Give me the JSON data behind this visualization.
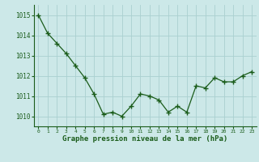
{
  "hours": [
    0,
    1,
    2,
    3,
    4,
    5,
    6,
    7,
    8,
    9,
    10,
    11,
    12,
    13,
    14,
    15,
    16,
    17,
    18,
    19,
    20,
    21,
    22,
    23
  ],
  "pressure": [
    1015.0,
    1014.1,
    1013.6,
    1013.1,
    1012.5,
    1011.9,
    1011.1,
    1010.1,
    1010.2,
    1010.0,
    1010.5,
    1011.1,
    1011.0,
    1010.8,
    1010.2,
    1010.5,
    1010.2,
    1011.5,
    1011.4,
    1011.9,
    1011.7,
    1011.7,
    1012.0,
    1012.2
  ],
  "line_color": "#1a5c1a",
  "marker_color": "#1a5c1a",
  "bg_color": "#cce8e8",
  "grid_color": "#aad0d0",
  "xlabel": "Graphe pression niveau de la mer (hPa)",
  "xlabel_color": "#1a5c1a",
  "tick_color": "#1a5c1a",
  "ylim": [
    1009.5,
    1015.5
  ],
  "yticks": [
    1010,
    1011,
    1012,
    1013,
    1014,
    1015
  ],
  "figsize": [
    3.2,
    2.0
  ],
  "dpi": 100
}
